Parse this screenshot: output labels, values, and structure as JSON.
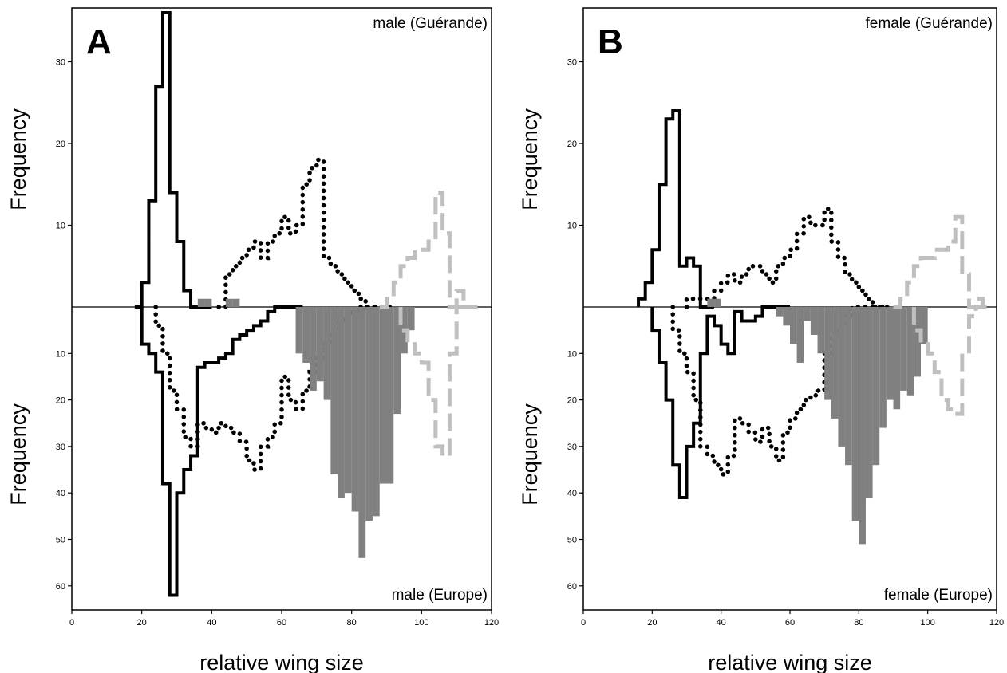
{
  "chart_data": [
    {
      "type": "histogram",
      "panel": "A",
      "top_label": "male (Guérande)",
      "bottom_label": "male (Europe)",
      "xlabel": "relative wing size",
      "ylabel_top": "Frequency",
      "ylabel_bottom": "Frequency",
      "xlim": [
        0,
        120
      ],
      "x_ticks": [
        0,
        20,
        40,
        60,
        80,
        100,
        120
      ],
      "ylim_top": [
        0,
        36
      ],
      "y_ticks_top": [
        10,
        20,
        30
      ],
      "ylim_bottom": [
        0,
        64
      ],
      "y_ticks_bottom": [
        10,
        20,
        30,
        40,
        50,
        60
      ],
      "series": [
        {
          "style": "solid-black",
          "top": {
            "x": [
              18,
              20,
              22,
              24,
              26,
              28,
              30,
              32,
              34,
              36,
              38
            ],
            "y": [
              0,
              3,
              13,
              27,
              36,
              14,
              8,
              2,
              0,
              0,
              0
            ]
          },
          "bottom": {
            "x": [
              20,
              22,
              24,
              26,
              28,
              30,
              32,
              34,
              36,
              38,
              40,
              42,
              44,
              46,
              48,
              50,
              52,
              54,
              56,
              58,
              60,
              62,
              64
            ],
            "y": [
              8,
              10,
              14,
              38,
              62,
              40,
              35,
              32,
              13,
              12,
              12,
              11,
              10,
              7,
              6,
              5,
              4,
              3,
              1,
              0,
              0,
              0,
              0
            ]
          }
        },
        {
          "style": "dotted-black",
          "top": {
            "x": [
              42,
              44,
              46,
              48,
              50,
              52,
              54,
              56,
              58,
              60,
              62,
              64,
              66,
              68,
              70,
              72,
              74,
              76,
              78,
              80,
              82,
              84,
              86,
              88
            ],
            "y": [
              0,
              4,
              5,
              6,
              7,
              8,
              6,
              8,
              9,
              11,
              9,
              10,
              15,
              17,
              18,
              6,
              5,
              4,
              3,
              2,
              1,
              0,
              0,
              0
            ]
          },
          "bottom": {
            "x": [
              24,
              26,
              28,
              30,
              32,
              34,
              36,
              38,
              40,
              42,
              44,
              46,
              48,
              50,
              52,
              54,
              56,
              58,
              60,
              62,
              64,
              66,
              68,
              70,
              72,
              74,
              76,
              78,
              80,
              82,
              84,
              86,
              88,
              90
            ],
            "y": [
              4,
              10,
              18,
              22,
              28,
              30,
              25,
              26,
              27,
              25,
              26,
              27,
              29,
              33,
              35,
              30,
              28,
              25,
              15,
              20,
              22,
              18,
              14,
              11,
              8,
              5,
              3,
              2,
              1,
              0,
              0,
              0,
              0,
              0
            ]
          }
        },
        {
          "style": "filled-gray",
          "top": {
            "x": [
              36,
              38,
              44,
              46
            ],
            "y": [
              1,
              1,
              1,
              1
            ]
          },
          "bottom": {
            "x": [
              64,
              66,
              68,
              70,
              72,
              74,
              76,
              78,
              80,
              82,
              84,
              86,
              88,
              90,
              92,
              94,
              96,
              98
            ],
            "y": [
              10,
              12,
              18,
              16,
              20,
              36,
              41,
              40,
              44,
              54,
              46,
              45,
              38,
              38,
              23,
              10,
              5,
              0
            ]
          }
        },
        {
          "style": "dashed-gray",
          "top": {
            "x": [
              88,
              90,
              92,
              94,
              96,
              98,
              100,
              102,
              104,
              106,
              108,
              110,
              112,
              114
            ],
            "y": [
              0,
              1,
              3,
              5,
              6,
              7,
              7,
              8,
              14,
              9,
              0,
              2,
              0,
              0
            ]
          },
          "bottom": {
            "x": [
              94,
              96,
              98,
              100,
              102,
              104,
              106,
              108,
              110,
              112
            ],
            "y": [
              5,
              8,
              10,
              12,
              20,
              30,
              32,
              10,
              0,
              0
            ]
          }
        }
      ]
    },
    {
      "type": "histogram",
      "panel": "B",
      "top_label": "female (Guérande)",
      "bottom_label": "female (Europe)",
      "xlabel": "relative wing size",
      "ylabel_top": "Frequency",
      "ylabel_bottom": "Frequency",
      "xlim": [
        0,
        120
      ],
      "x_ticks": [
        0,
        20,
        40,
        60,
        80,
        100,
        120
      ],
      "ylim_top": [
        0,
        36
      ],
      "y_ticks_top": [
        10,
        20,
        30
      ],
      "ylim_bottom": [
        0,
        64
      ],
      "y_ticks_bottom": [
        10,
        20,
        30,
        40,
        50,
        60
      ],
      "series": [
        {
          "style": "solid-black",
          "top": {
            "x": [
              16,
              18,
              20,
              22,
              24,
              26,
              28,
              30,
              32,
              34,
              36
            ],
            "y": [
              1,
              3,
              7,
              15,
              23,
              24,
              5,
              6,
              5,
              0,
              0
            ]
          },
          "bottom": {
            "x": [
              20,
              22,
              24,
              26,
              28,
              30,
              32,
              34,
              36,
              38,
              40,
              42,
              44,
              46,
              48,
              50,
              52,
              54,
              56,
              58
            ],
            "y": [
              5,
              12,
              20,
              34,
              41,
              30,
              25,
              10,
              2,
              4,
              8,
              10,
              1,
              3,
              3,
              2,
              0,
              0,
              0,
              0
            ]
          }
        },
        {
          "style": "dotted-black",
          "top": {
            "x": [
              30,
              32,
              34,
              36,
              38,
              40,
              42,
              44,
              46,
              48,
              50,
              52,
              54,
              56,
              58,
              60,
              62,
              64,
              66,
              68,
              70,
              72,
              74,
              76,
              78,
              80,
              82,
              84,
              86
            ],
            "y": [
              1,
              1,
              1,
              1,
              2,
              3,
              4,
              3,
              4,
              5,
              5,
              4,
              3,
              5,
              6,
              7,
              9,
              11,
              10,
              10,
              12,
              8,
              6,
              4,
              3,
              2,
              1,
              0,
              0
            ]
          },
          "bottom": {
            "x": [
              26,
              28,
              30,
              32,
              34,
              36,
              38,
              40,
              42,
              44,
              46,
              48,
              50,
              52,
              54,
              56,
              58,
              60,
              62,
              64,
              66,
              68,
              70,
              72,
              74,
              76,
              78,
              80,
              82,
              84,
              86,
              88
            ],
            "y": [
              5,
              10,
              14,
              20,
              30,
              32,
              34,
              36,
              32,
              24,
              25,
              27,
              29,
              26,
              30,
              33,
              27,
              24,
              22,
              20,
              19,
              18,
              10,
              6,
              4,
              2,
              0,
              0,
              0,
              0,
              0,
              0
            ]
          }
        },
        {
          "style": "filled-gray",
          "top": {
            "x": [
              36,
              38
            ],
            "y": [
              1,
              1
            ]
          },
          "bottom": {
            "x": [
              56,
              58,
              60,
              62,
              64,
              66,
              68,
              70,
              72,
              74,
              76,
              78,
              80,
              82,
              84,
              86,
              88,
              90,
              92,
              94,
              96,
              98
            ],
            "y": [
              2,
              4,
              8,
              12,
              3,
              6,
              10,
              20,
              24,
              30,
              34,
              46,
              51,
              41,
              34,
              26,
              20,
              22,
              18,
              19,
              15,
              8
            ]
          }
        },
        {
          "style": "dashed-gray",
          "top": {
            "x": [
              90,
              92,
              94,
              96,
              98,
              100,
              102,
              104,
              106,
              108,
              110,
              112,
              114,
              116
            ],
            "y": [
              0,
              1,
              3,
              5,
              6,
              6,
              7,
              7,
              8,
              11,
              4,
              0,
              1,
              0
            ]
          },
          "bottom": {
            "x": [
              96,
              98,
              100,
              102,
              104,
              106,
              108,
              110,
              112,
              114
            ],
            "y": [
              5,
              8,
              10,
              14,
              20,
              22,
              23,
              10,
              2,
              0
            ]
          }
        }
      ]
    }
  ]
}
